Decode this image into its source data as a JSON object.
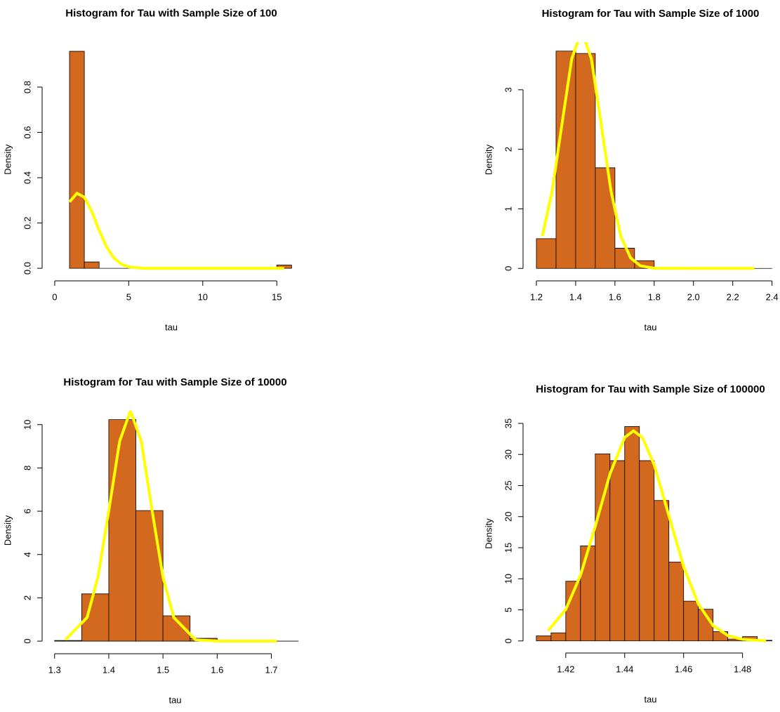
{
  "chart_data": [
    {
      "type": "histogram",
      "title": "Histogram for Tau with Sample Size of 100",
      "x_label": "tau",
      "y_label": "Density",
      "color": "#d2691e",
      "bins": [
        1,
        2,
        3,
        4,
        5,
        6,
        7,
        8,
        9,
        10,
        11,
        12,
        13,
        14,
        15,
        16
      ],
      "values": [
        0.958,
        0.028,
        0,
        0,
        0,
        0,
        0,
        0,
        0,
        0,
        0,
        0,
        0,
        0,
        0.014
      ],
      "xlim": [
        -0.85,
        16.6
      ],
      "xticks": [
        0,
        5,
        10,
        15
      ],
      "ylim": [
        -0.04,
        1.0
      ],
      "yticks": [
        {
          "value": 0,
          "label": "0.0"
        },
        0.2,
        0.4,
        0.6,
        0.8
      ],
      "density_curve": {
        "color": "#ffff00",
        "x": [
          1,
          1.5,
          2,
          2.5,
          3,
          3.5,
          4,
          4.5,
          5,
          6,
          8,
          10,
          12,
          15.5
        ],
        "values": [
          0.293,
          0.331,
          0.314,
          0.251,
          0.168,
          0.095,
          0.045,
          0.018,
          0.006,
          0,
          0,
          0,
          0,
          0
        ]
      }
    },
    {
      "type": "histogram",
      "title": "Histogram for Tau with Sample Size of 1000",
      "x_label": "tau",
      "y_label": "Density",
      "color": "#d2691e",
      "bins": [
        1.2,
        1.3,
        1.4,
        1.5,
        1.6,
        1.7,
        1.8,
        1.9,
        2.0,
        2.1,
        2.2,
        2.3,
        2.4
      ],
      "values": [
        0.5,
        3.65,
        3.61,
        1.69,
        0.34,
        0.13,
        0,
        0,
        0,
        0,
        0,
        0
      ],
      "xlim": [
        1.132,
        2.43
      ],
      "xticks": [
        1.2,
        1.4,
        1.6,
        1.8,
        {
          "value": 2,
          "label": "2.0"
        },
        2.2,
        2.4
      ],
      "ylim": [
        -0.15,
        3.8
      ],
      "yticks": [
        0,
        1,
        2,
        3
      ],
      "density_curve": {
        "color": "#ffff00",
        "x": [
          1.23,
          1.28,
          1.33,
          1.38,
          1.43,
          1.48,
          1.53,
          1.58,
          1.63,
          1.68,
          1.73,
          1.8,
          2.0,
          2.31
        ],
        "values": [
          0.54,
          1.295,
          2.42,
          3.52,
          3.99,
          3.52,
          2.42,
          1.295,
          0.54,
          0.175,
          0.044,
          0.004,
          0,
          0
        ]
      }
    },
    {
      "type": "histogram",
      "title": "Histogram for Tau with Sample Size of 10000",
      "x_label": "tau",
      "y_label": "Density",
      "color": "#d2691e",
      "bins": [
        1.3,
        1.35,
        1.4,
        1.45,
        1.5,
        1.55,
        1.6,
        1.65,
        1.7,
        1.75
      ],
      "values": [
        0.03,
        2.18,
        10.23,
        6.03,
        1.17,
        0.13,
        0,
        0,
        0
      ],
      "xlim": [
        1.277,
        1.768
      ],
      "xticks": [
        1.3,
        1.4,
        1.5,
        1.6,
        1.7
      ],
      "ylim": [
        -0.42,
        10.64
      ],
      "yticks": [
        0,
        2,
        4,
        6,
        8,
        10
      ],
      "density_curve": {
        "color": "#ffff00",
        "x": [
          1.32,
          1.36,
          1.38,
          1.4,
          1.42,
          1.44,
          1.46,
          1.48,
          1.5,
          1.52,
          1.56,
          1.6,
          1.71
        ],
        "values": [
          0.064,
          1.09,
          2.96,
          6.02,
          9.23,
          10.64,
          9.23,
          6.02,
          2.96,
          1.09,
          0.064,
          0.001,
          0
        ]
      }
    },
    {
      "type": "histogram",
      "title": "Histogram for Tau with Sample Size of 100000",
      "x_label": "tau",
      "y_label": "Density",
      "color": "#d2691e",
      "bins": [
        1.41,
        1.415,
        1.42,
        1.425,
        1.43,
        1.435,
        1.44,
        1.445,
        1.45,
        1.455,
        1.46,
        1.465,
        1.47,
        1.475,
        1.48,
        1.485,
        1.49
      ],
      "values": [
        0.8,
        1.3,
        9.6,
        15.3,
        30.1,
        29.0,
        34.5,
        29.0,
        22.6,
        12.7,
        6.4,
        5.1,
        1.5,
        0.3,
        0.7,
        0.1
      ],
      "xlim": [
        1.4055,
        1.492
      ],
      "xticks": [
        1.42,
        1.44,
        1.46,
        1.48
      ],
      "ylim": [
        -1.38,
        35.9
      ],
      "yticks": [
        0,
        5,
        10,
        15,
        20,
        25,
        30,
        35
      ],
      "density_curve": {
        "color": "#ffff00",
        "x": [
          1.414,
          1.42,
          1.425,
          1.43,
          1.435,
          1.44,
          1.443,
          1.446,
          1.45,
          1.455,
          1.46,
          1.465,
          1.47,
          1.475,
          1.48,
          1.488
        ],
        "values": [
          1.65,
          5.06,
          10.56,
          18.42,
          26.86,
          32.73,
          33.8,
          32.73,
          28.35,
          20.16,
          11.97,
          5.94,
          2.47,
          0.86,
          0.25,
          0.02
        ]
      }
    }
  ]
}
